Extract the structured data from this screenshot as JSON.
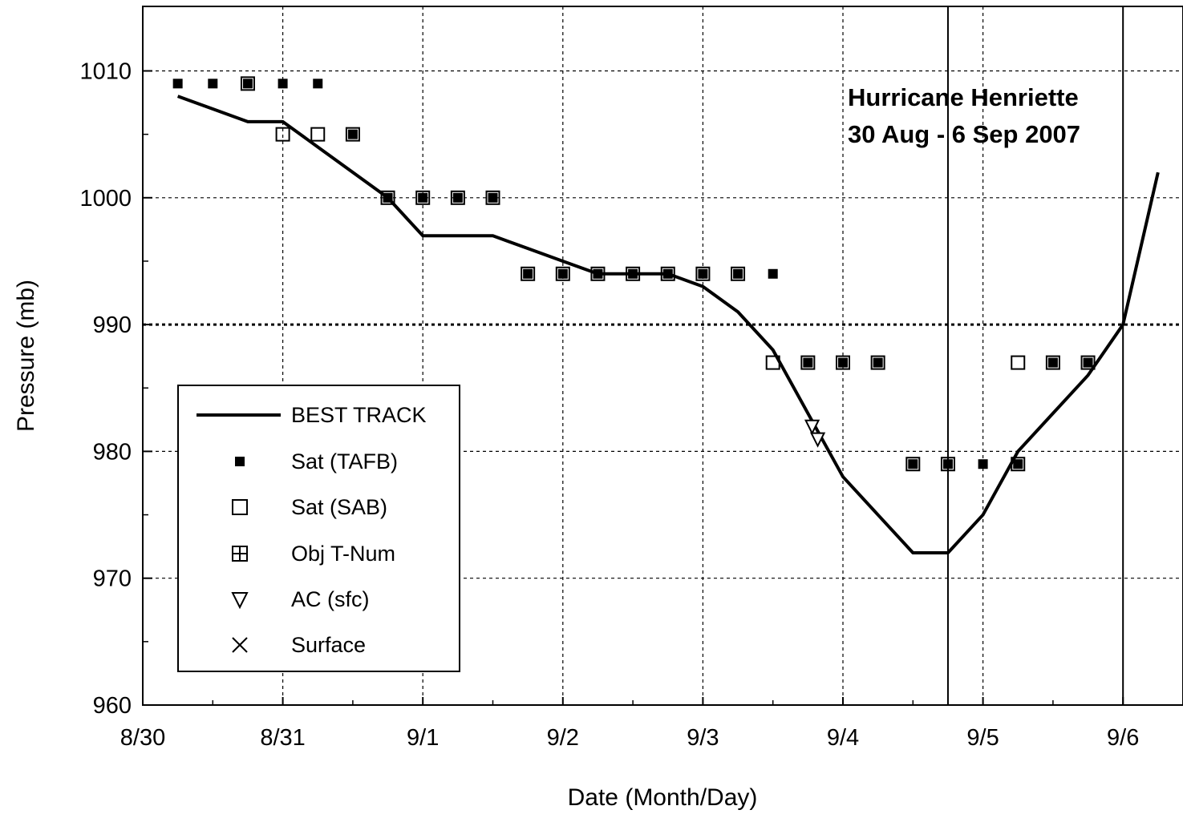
{
  "chart_data": {
    "type": "scatter",
    "title": "",
    "annotation_lines": [
      "Hurricane Henriette",
      "30 Aug - 6 Sep 2007"
    ],
    "xlabel": "Date (Month/Day)",
    "ylabel": "Pressure (mb)",
    "x_unit": "days since 8/30 00Z",
    "xlim": [
      0,
      7.3
    ],
    "ylim": [
      960,
      1015
    ],
    "x_ticks": [
      {
        "x": 0,
        "label": "8/30"
      },
      {
        "x": 1,
        "label": "8/31"
      },
      {
        "x": 2,
        "label": "9/1"
      },
      {
        "x": 3,
        "label": "9/2"
      },
      {
        "x": 4,
        "label": "9/3"
      },
      {
        "x": 5,
        "label": "9/4"
      },
      {
        "x": 6,
        "label": "9/5"
      },
      {
        "x": 7,
        "label": "9/6"
      }
    ],
    "y_ticks": [
      960,
      970,
      980,
      990,
      1000,
      1010
    ],
    "grid": true,
    "reference_line_y": 990,
    "vertical_lines_x": [
      5.75,
      7.0
    ],
    "legend_position": "lower-left",
    "series": [
      {
        "name": "BEST TRACK",
        "kind": "line",
        "points": [
          [
            0.25,
            1008
          ],
          [
            0.75,
            1006
          ],
          [
            1.0,
            1006
          ],
          [
            1.25,
            1004
          ],
          [
            1.5,
            1002
          ],
          [
            1.75,
            1000
          ],
          [
            2.0,
            997
          ],
          [
            2.25,
            997
          ],
          [
            2.5,
            997
          ],
          [
            2.75,
            996
          ],
          [
            3.0,
            995
          ],
          [
            3.25,
            994
          ],
          [
            3.5,
            994
          ],
          [
            3.75,
            994
          ],
          [
            4.0,
            993
          ],
          [
            4.25,
            991
          ],
          [
            4.5,
            988
          ],
          [
            4.75,
            983
          ],
          [
            5.0,
            978
          ],
          [
            5.25,
            975
          ],
          [
            5.5,
            972
          ],
          [
            5.75,
            972
          ],
          [
            6.0,
            975
          ],
          [
            6.25,
            980
          ],
          [
            6.5,
            983
          ],
          [
            6.75,
            986
          ],
          [
            7.0,
            990
          ],
          [
            7.25,
            1002
          ]
        ]
      },
      {
        "name": "Sat (TAFB)",
        "kind": "filled-square",
        "points": [
          [
            0.25,
            1009
          ],
          [
            0.5,
            1009
          ],
          [
            0.75,
            1009
          ],
          [
            1.0,
            1009
          ],
          [
            1.25,
            1009
          ],
          [
            1.5,
            1005
          ],
          [
            1.75,
            1000
          ],
          [
            2.0,
            1000
          ],
          [
            2.25,
            1000
          ],
          [
            2.5,
            1000
          ],
          [
            2.75,
            994
          ],
          [
            3.0,
            994
          ],
          [
            3.25,
            994
          ],
          [
            3.5,
            994
          ],
          [
            3.75,
            994
          ],
          [
            4.0,
            994
          ],
          [
            4.25,
            994
          ],
          [
            4.5,
            994
          ],
          [
            4.75,
            987
          ],
          [
            5.0,
            987
          ],
          [
            5.25,
            987
          ],
          [
            5.5,
            979
          ],
          [
            5.75,
            979
          ],
          [
            6.0,
            979
          ],
          [
            6.25,
            979
          ],
          [
            6.5,
            987
          ],
          [
            6.75,
            987
          ]
        ]
      },
      {
        "name": "Sat (SAB)",
        "kind": "open-square",
        "points": [
          [
            0.75,
            1009
          ],
          [
            1.0,
            1005
          ],
          [
            1.25,
            1005
          ],
          [
            1.5,
            1005
          ],
          [
            1.75,
            1000
          ],
          [
            2.0,
            1000
          ],
          [
            2.25,
            1000
          ],
          [
            2.5,
            1000
          ],
          [
            2.75,
            994
          ],
          [
            3.0,
            994
          ],
          [
            3.25,
            994
          ],
          [
            3.5,
            994
          ],
          [
            3.75,
            994
          ],
          [
            4.0,
            994
          ],
          [
            4.25,
            994
          ],
          [
            4.5,
            987
          ],
          [
            4.75,
            987
          ],
          [
            5.0,
            987
          ],
          [
            5.25,
            987
          ],
          [
            5.5,
            979
          ],
          [
            5.75,
            979
          ],
          [
            6.25,
            979
          ],
          [
            6.25,
            987
          ],
          [
            6.5,
            987
          ],
          [
            6.75,
            987
          ]
        ]
      },
      {
        "name": "Obj T-Num",
        "kind": "plus-square",
        "points": []
      },
      {
        "name": "AC (sfc)",
        "kind": "triangle-down",
        "points": [
          [
            4.78,
            982
          ],
          [
            4.82,
            981
          ]
        ]
      },
      {
        "name": "Surface",
        "kind": "cross",
        "points": []
      }
    ]
  }
}
